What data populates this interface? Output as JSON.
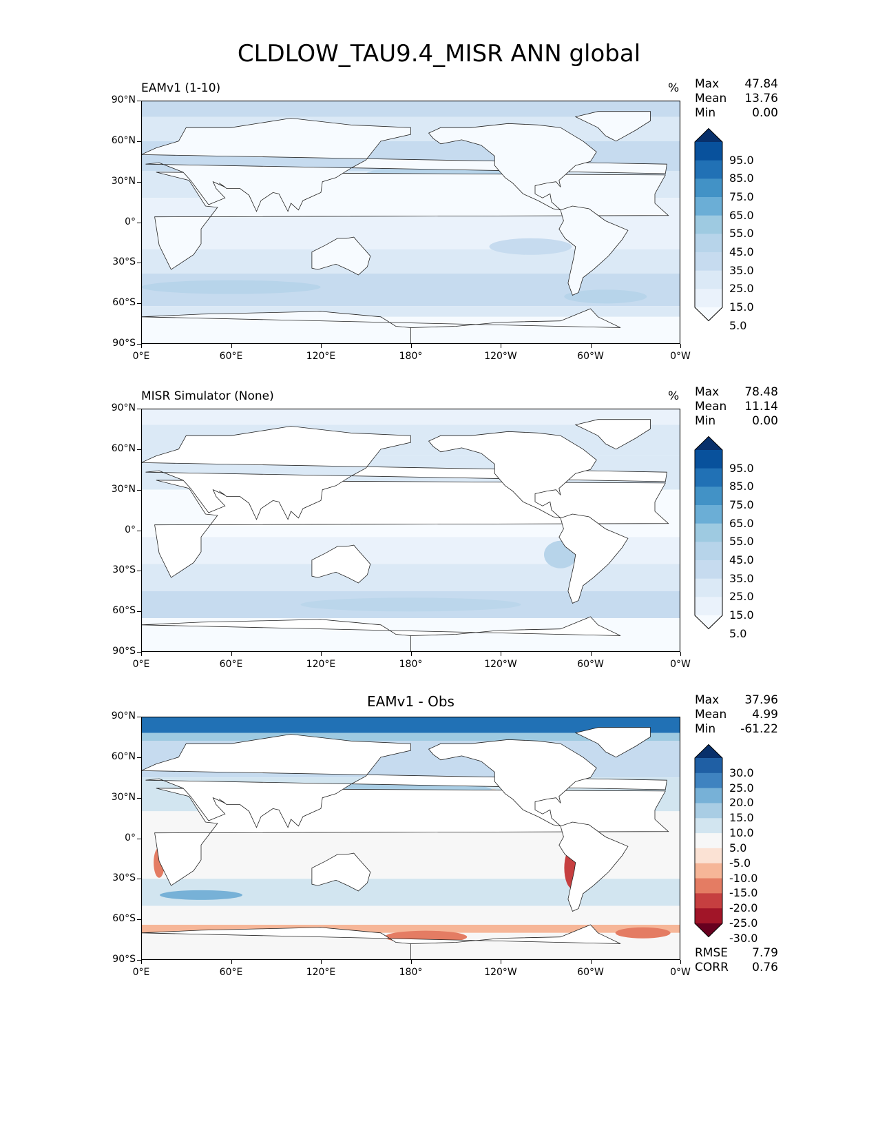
{
  "title": "CLDLOW_TAU9.4_MISR ANN global",
  "axes": {
    "lat_labels": [
      "90°N",
      "60°N",
      "30°N",
      "0°",
      "30°S",
      "60°S",
      "90°S"
    ],
    "lon_labels": [
      "0°E",
      "60°E",
      "120°E",
      "180°",
      "120°W",
      "60°W",
      "0°W"
    ]
  },
  "panels": [
    {
      "label": "EAMv1 (1-10)",
      "unit": "%",
      "stats": [
        {
          "name": "Max",
          "value": "47.84"
        },
        {
          "name": "Mean",
          "value": "13.76"
        },
        {
          "name": "Min",
          "value": "0.00"
        }
      ],
      "colorbar": {
        "labels": [
          "95.0",
          "85.0",
          "75.0",
          "65.0",
          "55.0",
          "45.0",
          "35.0",
          "25.0",
          "15.0",
          "5.0"
        ],
        "colors": [
          "#08306b",
          "#08519c",
          "#2171b5",
          "#4292c6",
          "#6baed6",
          "#9ecae1",
          "#b7d4ea",
          "#c6dbef",
          "#dbe9f6",
          "#eaf2fb",
          "#f7fbff"
        ]
      }
    },
    {
      "label": "MISR Simulator (None)",
      "unit": "%",
      "stats": [
        {
          "name": "Max",
          "value": "78.48"
        },
        {
          "name": "Mean",
          "value": "11.14"
        },
        {
          "name": "Min",
          "value": "0.00"
        }
      ],
      "colorbar": {
        "labels": [
          "95.0",
          "85.0",
          "75.0",
          "65.0",
          "55.0",
          "45.0",
          "35.0",
          "25.0",
          "15.0",
          "5.0"
        ],
        "colors": [
          "#08306b",
          "#08519c",
          "#2171b5",
          "#4292c6",
          "#6baed6",
          "#9ecae1",
          "#b7d4ea",
          "#c6dbef",
          "#dbe9f6",
          "#eaf2fb",
          "#f7fbff"
        ]
      }
    },
    {
      "label": "EAMv1 - Obs",
      "stats": [
        {
          "name": "Max",
          "value": "37.96"
        },
        {
          "name": "Mean",
          "value": "4.99"
        },
        {
          "name": "Min",
          "value": "-61.22"
        }
      ],
      "extra_stats": [
        {
          "name": "RMSE",
          "value": "7.79"
        },
        {
          "name": "CORR",
          "value": "0.76"
        }
      ],
      "colorbar": {
        "labels": [
          "30.0",
          "25.0",
          "20.0",
          "15.0",
          "10.0",
          "5.0",
          "-5.0",
          "-10.0",
          "-15.0",
          "-20.0",
          "-25.0",
          "-30.0"
        ],
        "colors": [
          "#08306b",
          "#1f5fa4",
          "#3f83c0",
          "#77b1d7",
          "#a9cde4",
          "#d2e5f0",
          "#f7f7f7",
          "#fbe2d4",
          "#f6b698",
          "#e47c63",
          "#c63f40",
          "#a11528",
          "#67001f"
        ]
      }
    }
  ]
}
